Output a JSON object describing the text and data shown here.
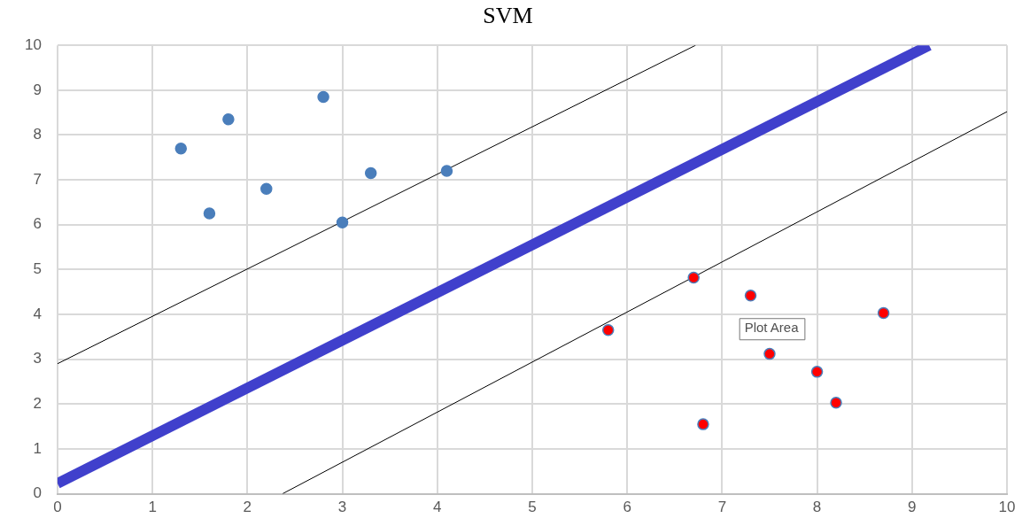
{
  "chart_data": {
    "type": "scatter",
    "title": "SVM",
    "xlim": [
      0,
      10
    ],
    "ylim": [
      0,
      10
    ],
    "xticks": [
      0,
      1,
      2,
      3,
      4,
      5,
      6,
      7,
      8,
      9,
      10
    ],
    "yticks": [
      0,
      1,
      2,
      3,
      4,
      5,
      6,
      7,
      8,
      9,
      10
    ],
    "grid": true,
    "legend": false,
    "marker": "circle",
    "annotations": [
      "Plot Area"
    ],
    "series": [
      {
        "color": "#4a7ebb",
        "x": [
          1.3,
          1.6,
          1.8,
          2.2,
          2.8,
          3.0,
          3.3,
          4.1
        ],
        "values": [
          7.7,
          6.25,
          8.35,
          6.8,
          8.85,
          6.05,
          7.15,
          7.2
        ]
      },
      {
        "color": "#ff0000",
        "x": [
          5.8,
          6.7,
          7.3,
          7.5,
          6.8,
          8.0,
          8.2,
          8.7
        ],
        "values": [
          3.65,
          4.82,
          4.42,
          3.12,
          1.55,
          2.72,
          2.03,
          4.03
        ]
      },
      {
        "type": "line",
        "color": "#4040cc",
        "marker": "none",
        "x": [
          0,
          9.18
        ],
        "values": [
          0.23,
          10
        ]
      },
      {
        "type": "line",
        "color": "#000000",
        "marker": "none",
        "x": [
          0,
          6.72
        ],
        "values": [
          2.9,
          10
        ]
      },
      {
        "type": "line",
        "color": "#000000",
        "marker": "none",
        "x": [
          2.37,
          10
        ],
        "values": [
          0,
          8.52
        ]
      }
    ]
  }
}
